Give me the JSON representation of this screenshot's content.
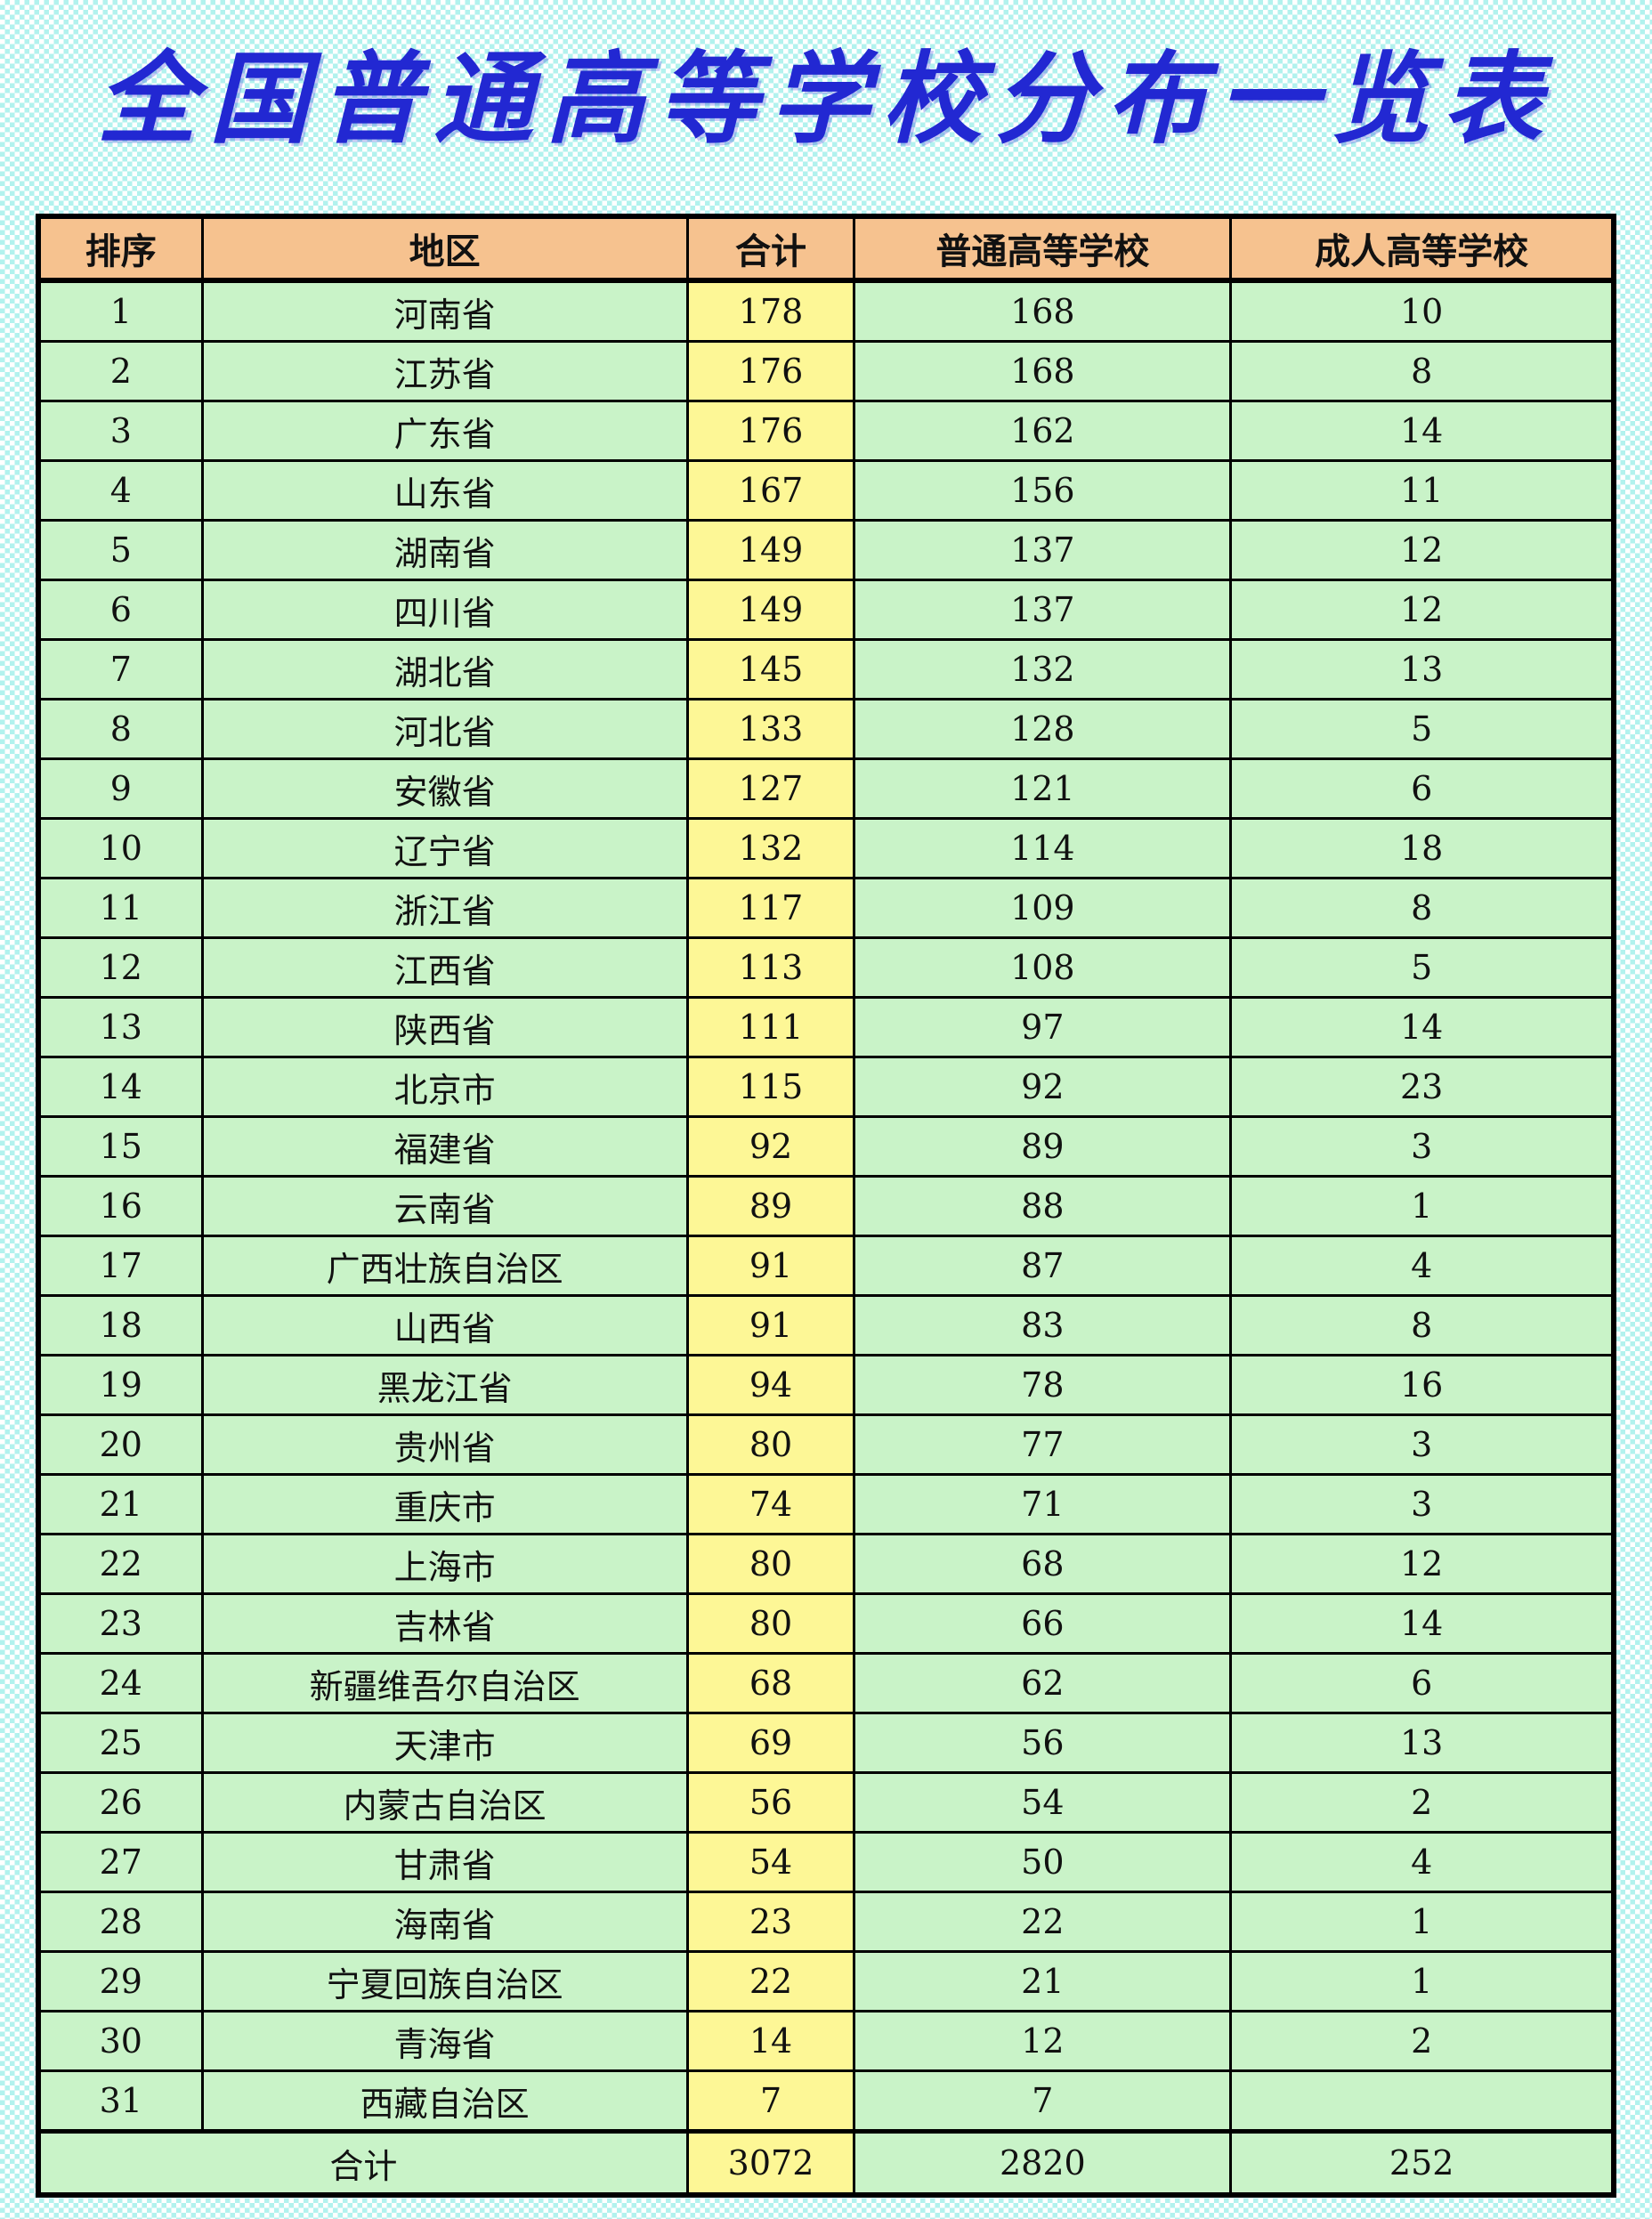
{
  "title": "全国普通高等学校分布一览表",
  "colors": {
    "title_blue": "#2228d2",
    "header_bg": "#f6c28f",
    "cell_green": "#c9f3c8",
    "cell_yellow": "#fdf796",
    "grid_line": "#000000",
    "background_check_cyan": "#b2f2ee",
    "background_check_white": "#ffffff"
  },
  "table": {
    "headers": [
      "排序",
      "地区",
      "合计",
      "普通高等学校",
      "成人高等学校"
    ],
    "rows": [
      [
        "1",
        "河南省",
        "178",
        "168",
        "10"
      ],
      [
        "2",
        "江苏省",
        "176",
        "168",
        "8"
      ],
      [
        "3",
        "广东省",
        "176",
        "162",
        "14"
      ],
      [
        "4",
        "山东省",
        "167",
        "156",
        "11"
      ],
      [
        "5",
        "湖南省",
        "149",
        "137",
        "12"
      ],
      [
        "6",
        "四川省",
        "149",
        "137",
        "12"
      ],
      [
        "7",
        "湖北省",
        "145",
        "132",
        "13"
      ],
      [
        "8",
        "河北省",
        "133",
        "128",
        "5"
      ],
      [
        "9",
        "安徽省",
        "127",
        "121",
        "6"
      ],
      [
        "10",
        "辽宁省",
        "132",
        "114",
        "18"
      ],
      [
        "11",
        "浙江省",
        "117",
        "109",
        "8"
      ],
      [
        "12",
        "江西省",
        "113",
        "108",
        "5"
      ],
      [
        "13",
        "陕西省",
        "111",
        "97",
        "14"
      ],
      [
        "14",
        "北京市",
        "115",
        "92",
        "23"
      ],
      [
        "15",
        "福建省",
        "92",
        "89",
        "3"
      ],
      [
        "16",
        "云南省",
        "89",
        "88",
        "1"
      ],
      [
        "17",
        "广西壮族自治区",
        "91",
        "87",
        "4"
      ],
      [
        "18",
        "山西省",
        "91",
        "83",
        "8"
      ],
      [
        "19",
        "黑龙江省",
        "94",
        "78",
        "16"
      ],
      [
        "20",
        "贵州省",
        "80",
        "77",
        "3"
      ],
      [
        "21",
        "重庆市",
        "74",
        "71",
        "3"
      ],
      [
        "22",
        "上海市",
        "80",
        "68",
        "12"
      ],
      [
        "23",
        "吉林省",
        "80",
        "66",
        "14"
      ],
      [
        "24",
        "新疆维吾尔自治区",
        "68",
        "62",
        "6"
      ],
      [
        "25",
        "天津市",
        "69",
        "56",
        "13"
      ],
      [
        "26",
        "内蒙古自治区",
        "56",
        "54",
        "2"
      ],
      [
        "27",
        "甘肃省",
        "54",
        "50",
        "4"
      ],
      [
        "28",
        "海南省",
        "23",
        "22",
        "1"
      ],
      [
        "29",
        "宁夏回族自治区",
        "22",
        "21",
        "1"
      ],
      [
        "30",
        "青海省",
        "14",
        "12",
        "2"
      ],
      [
        "31",
        "西藏自治区",
        "7",
        "7",
        ""
      ]
    ],
    "total": {
      "label": "合计",
      "overall": "3072",
      "regular": "2820",
      "adult": "252"
    }
  }
}
